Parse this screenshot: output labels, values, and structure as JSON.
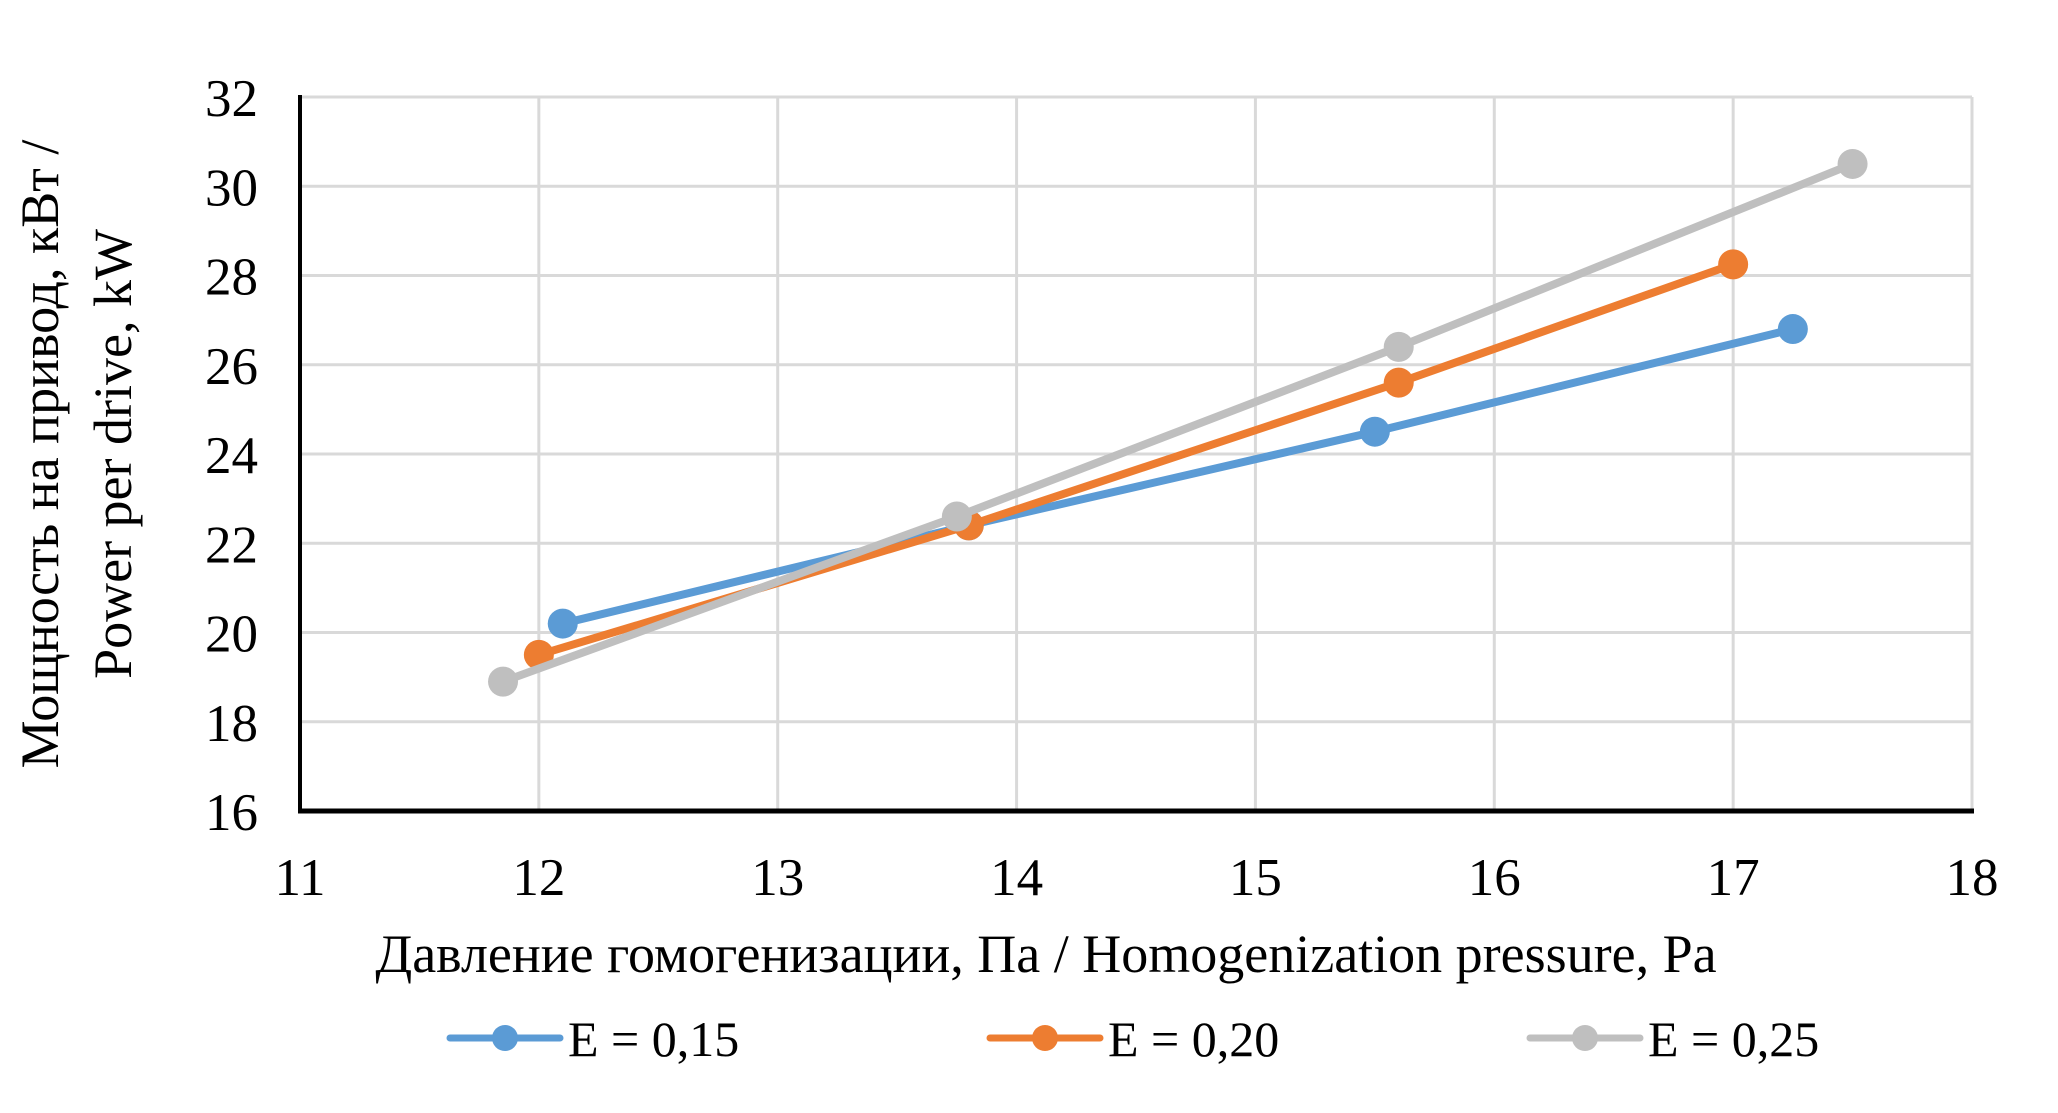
{
  "chart_data": {
    "type": "line",
    "title": "",
    "xlabel": "Давление гомогенизации, Па / Homogenization pressure, Pa",
    "ylabel": "Мощность на привод, кВт / Power per drive, kW",
    "ylabel_lines": [
      "Мощность на привод, кВт /",
      "Power per drive, kW"
    ],
    "xlim": [
      11,
      18
    ],
    "ylim": [
      16,
      32
    ],
    "x_ticks": [
      11,
      12,
      13,
      14,
      15,
      16,
      17,
      18
    ],
    "y_ticks": [
      16,
      18,
      20,
      22,
      24,
      26,
      28,
      30,
      32
    ],
    "grid": true,
    "legend_position": "bottom",
    "series": [
      {
        "name": "E = 0,15",
        "color": "#5B9BD5",
        "points": [
          [
            12.1,
            20.2
          ],
          [
            13.8,
            22.4
          ],
          [
            15.5,
            24.5
          ],
          [
            17.25,
            26.8
          ]
        ]
      },
      {
        "name": "E = 0,20",
        "color": "#ED7D31",
        "points": [
          [
            12.0,
            19.5
          ],
          [
            13.8,
            22.4
          ],
          [
            15.6,
            25.6
          ],
          [
            17.0,
            28.25
          ]
        ]
      },
      {
        "name": "E = 0,25",
        "color": "#BFBFBF",
        "points": [
          [
            11.85,
            18.9
          ],
          [
            13.75,
            22.6
          ],
          [
            15.6,
            26.4
          ],
          [
            17.5,
            30.5
          ]
        ]
      }
    ],
    "colors": {
      "gridline": "#D9D9D9",
      "axis": "#000000",
      "text": "#000000"
    }
  }
}
